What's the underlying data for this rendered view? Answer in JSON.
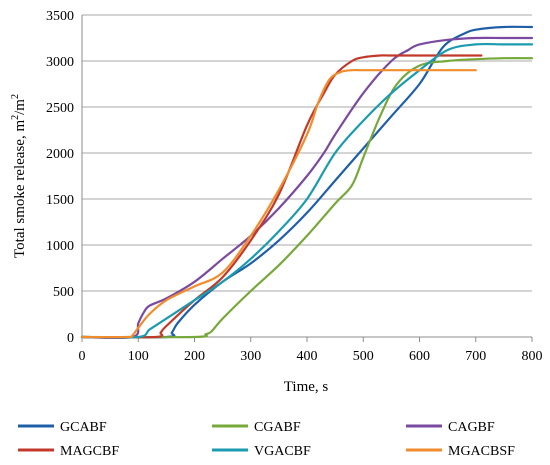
{
  "chart_data": {
    "type": "line",
    "title": "",
    "xlabel": "Time, s",
    "ylabel_main": "Total smoke release, m",
    "ylabel_sup1": "2",
    "ylabel_mid": "/m",
    "ylabel_sup2": "2",
    "xlim": [
      0,
      800
    ],
    "ylim": [
      0,
      3500
    ],
    "xticks": [
      0,
      100,
      200,
      300,
      400,
      500,
      600,
      700,
      800
    ],
    "yticks": [
      0,
      500,
      1000,
      1500,
      2000,
      2500,
      3000,
      3500
    ],
    "grid": "horizontal",
    "legend_position": "bottom",
    "series": [
      {
        "name": "GCABF",
        "color": "#1f5fa8",
        "x": [
          0,
          150,
          160,
          170,
          200,
          250,
          300,
          350,
          400,
          450,
          500,
          550,
          600,
          630,
          650,
          680,
          700,
          750,
          800
        ],
        "y": [
          0,
          0,
          50,
          150,
          350,
          600,
          800,
          1050,
          1350,
          1700,
          2050,
          2400,
          2750,
          3050,
          3200,
          3300,
          3340,
          3370,
          3370
        ]
      },
      {
        "name": "CGABF",
        "color": "#77a83a",
        "x": [
          0,
          200,
          220,
          230,
          250,
          300,
          350,
          400,
          450,
          480,
          500,
          530,
          560,
          600,
          650,
          700,
          750,
          800
        ],
        "y": [
          0,
          0,
          30,
          60,
          200,
          500,
          780,
          1100,
          1450,
          1650,
          1950,
          2400,
          2750,
          2950,
          3000,
          3020,
          3030,
          3030
        ]
      },
      {
        "name": "CAGBF",
        "color": "#7a4aa0",
        "x": [
          0,
          90,
          100,
          110,
          120,
          150,
          200,
          250,
          300,
          350,
          400,
          430,
          450,
          500,
          550,
          580,
          600,
          650,
          700,
          750,
          800
        ],
        "y": [
          0,
          0,
          150,
          270,
          340,
          420,
          600,
          850,
          1100,
          1400,
          1750,
          2000,
          2200,
          2650,
          3000,
          3120,
          3180,
          3230,
          3250,
          3250,
          3250
        ]
      },
      {
        "name": "MAGCBF",
        "color": "#c0392b",
        "x": [
          0,
          130,
          140,
          150,
          200,
          250,
          300,
          350,
          400,
          430,
          450,
          480,
          500,
          530,
          550,
          600,
          650,
          700,
          710
        ],
        "y": [
          0,
          0,
          50,
          120,
          400,
          650,
          1050,
          1550,
          2300,
          2650,
          2850,
          3000,
          3040,
          3060,
          3060,
          3060,
          3060,
          3060,
          3060
        ]
      },
      {
        "name": "VGACBF",
        "color": "#1a9bb0",
        "x": [
          0,
          100,
          120,
          150,
          200,
          250,
          300,
          350,
          400,
          450,
          500,
          550,
          600,
          650,
          700,
          750,
          800
        ],
        "y": [
          0,
          0,
          80,
          200,
          400,
          600,
          850,
          1150,
          1500,
          2000,
          2350,
          2650,
          2900,
          3120,
          3180,
          3180,
          3180
        ]
      },
      {
        "name": "MGACBSF",
        "color": "#f08c2c",
        "x": [
          0,
          80,
          90,
          100,
          120,
          150,
          200,
          250,
          300,
          350,
          400,
          420,
          440,
          460,
          480,
          500,
          550,
          600,
          650,
          700
        ],
        "y": [
          0,
          0,
          20,
          100,
          250,
          400,
          550,
          700,
          1100,
          1600,
          2200,
          2550,
          2800,
          2880,
          2900,
          2900,
          2900,
          2900,
          2900,
          2900
        ]
      }
    ]
  }
}
